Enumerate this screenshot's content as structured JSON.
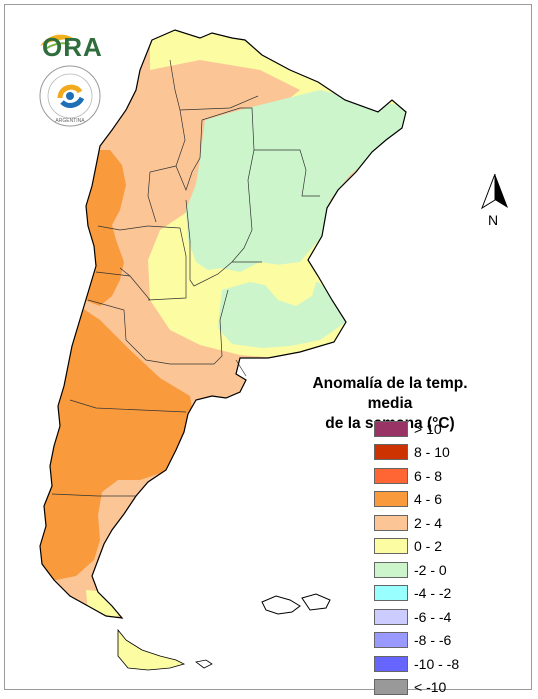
{
  "map": {
    "title_line1": "Anomalía de la temp. media",
    "title_line2": "de la semana (°C)",
    "north_label": "N",
    "logo_text": "ORA",
    "seal_text": "ARGENTINA",
    "legend": [
      {
        "label": "> 10",
        "color": "#993366"
      },
      {
        "label": "8 - 10",
        "color": "#cc3300"
      },
      {
        "label": "6 - 8",
        "color": "#ff6633"
      },
      {
        "label": "4 - 6",
        "color": "#f99a3c"
      },
      {
        "label": "2 - 4",
        "color": "#fbc596"
      },
      {
        "label": "0 - 2",
        "color": "#fcfca3"
      },
      {
        "label": "-2 - 0",
        "color": "#ccf5cc"
      },
      {
        "label": "-4 - -2",
        "color": "#99ffff"
      },
      {
        "label": "-6 - -4",
        "color": "#ccccff"
      },
      {
        "label": "-8 - -6",
        "color": "#9999ff"
      },
      {
        "label": "-10 - -8",
        "color": "#6666ff"
      },
      {
        "label": "< -10",
        "color": "#999999"
      }
    ]
  }
}
